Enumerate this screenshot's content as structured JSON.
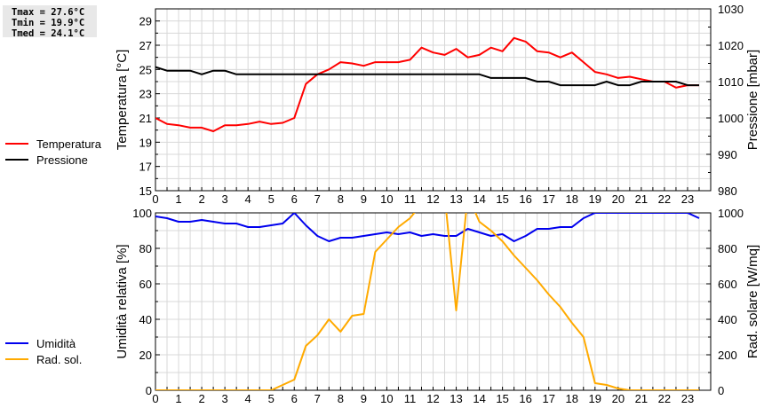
{
  "stats": {
    "tmax": "Tmax = 27.6°C",
    "tmin": "Tmin = 19.9°C",
    "tmed": "Tmed = 24.1°C"
  },
  "legend_top": [
    {
      "label": "Temperatura",
      "color": "#ff0000"
    },
    {
      "label": "Pressione",
      "color": "#000000"
    }
  ],
  "legend_bottom": [
    {
      "label": "Umidità",
      "color": "#0000ee"
    },
    {
      "label": "Rad. sol.",
      "color": "#ffaa00"
    }
  ],
  "chart_data": [
    {
      "type": "line",
      "title": "",
      "xlabel": "",
      "ylabel": "Temperatura [°C]",
      "ylabel_right": "Pressione [mbar]",
      "xlim": [
        0,
        24
      ],
      "ylim": [
        15,
        30
      ],
      "ylim_right": [
        980,
        1030
      ],
      "yticks": [
        15,
        17,
        19,
        21,
        23,
        25,
        27,
        29
      ],
      "yticks_right": [
        980,
        990,
        1000,
        1010,
        1020,
        1030
      ],
      "xticks": [
        0,
        1,
        2,
        3,
        4,
        5,
        6,
        7,
        8,
        9,
        10,
        11,
        12,
        13,
        14,
        15,
        16,
        17,
        18,
        19,
        20,
        21,
        22,
        23
      ],
      "grid": true,
      "legend_position": "left",
      "x": [
        0,
        0.5,
        1,
        1.5,
        2,
        2.5,
        3,
        3.5,
        4,
        4.5,
        5,
        5.5,
        6,
        6.5,
        7,
        7.5,
        8,
        8.5,
        9,
        9.5,
        10,
        10.5,
        11,
        11.5,
        12,
        12.5,
        13,
        13.5,
        14,
        14.5,
        15,
        15.5,
        16,
        16.5,
        17,
        17.5,
        18,
        18.5,
        19,
        19.5,
        20,
        20.5,
        21,
        21.5,
        22,
        22.5,
        23,
        23.5
      ],
      "series": [
        {
          "name": "Temperatura",
          "axis": "left",
          "color": "#ff0000",
          "values": [
            21.0,
            20.5,
            20.4,
            20.2,
            20.2,
            19.9,
            20.4,
            20.4,
            20.5,
            20.7,
            20.5,
            20.6,
            21.0,
            23.8,
            24.6,
            25.0,
            25.6,
            25.5,
            25.3,
            25.6,
            25.6,
            25.6,
            25.8,
            26.8,
            26.4,
            26.2,
            26.7,
            26.0,
            26.2,
            26.8,
            26.5,
            27.6,
            27.3,
            26.5,
            26.4,
            26.0,
            26.4,
            25.6,
            24.8,
            24.6,
            24.3,
            24.4,
            24.2,
            24.0,
            24.0,
            23.5,
            23.7,
            23.7
          ]
        },
        {
          "name": "Pressione",
          "axis": "right",
          "color": "#000000",
          "values": [
            1014,
            1013,
            1013,
            1013,
            1012,
            1013,
            1013,
            1012,
            1012,
            1012,
            1012,
            1012,
            1012,
            1012,
            1012,
            1012,
            1012,
            1012,
            1012,
            1012,
            1012,
            1012,
            1012,
            1012,
            1012,
            1012,
            1012,
            1012,
            1012,
            1011,
            1011,
            1011,
            1011,
            1010,
            1010,
            1009,
            1009,
            1009,
            1009,
            1010,
            1009,
            1009,
            1010,
            1010,
            1010,
            1010,
            1009,
            1009
          ]
        }
      ]
    },
    {
      "type": "line",
      "title": "",
      "xlabel": "",
      "ylabel": "Umidità relativa [%]",
      "ylabel_right": "Rad. solare [W/mq]",
      "xlim": [
        0,
        24
      ],
      "ylim": [
        0,
        100
      ],
      "ylim_right": [
        0,
        1000
      ],
      "yticks": [
        0,
        20,
        40,
        60,
        80,
        100
      ],
      "yticks_right": [
        0,
        200,
        400,
        600,
        800,
        1000
      ],
      "xticks": [
        0,
        1,
        2,
        3,
        4,
        5,
        6,
        7,
        8,
        9,
        10,
        11,
        12,
        13,
        14,
        15,
        16,
        17,
        18,
        19,
        20,
        21,
        22,
        23
      ],
      "grid": true,
      "legend_position": "left",
      "x": [
        0,
        0.5,
        1,
        1.5,
        2,
        2.5,
        3,
        3.5,
        4,
        4.5,
        5,
        5.5,
        6,
        6.5,
        7,
        7.5,
        8,
        8.5,
        9,
        9.5,
        10,
        10.5,
        11,
        11.5,
        12,
        12.5,
        13,
        13.5,
        14,
        14.5,
        15,
        15.5,
        16,
        16.5,
        17,
        17.5,
        18,
        18.5,
        19,
        19.5,
        20,
        20.5,
        21,
        21.5,
        22,
        22.5,
        23,
        23.5
      ],
      "series": [
        {
          "name": "Umidità",
          "axis": "left",
          "color": "#0000ee",
          "values": [
            98,
            97,
            95,
            95,
            96,
            95,
            94,
            94,
            92,
            92,
            93,
            94,
            100,
            93,
            87,
            84,
            86,
            86,
            87,
            88,
            89,
            88,
            89,
            87,
            88,
            87,
            87,
            91,
            89,
            87,
            88,
            84,
            87,
            91,
            91,
            92,
            92,
            97,
            100,
            100,
            100,
            100,
            100,
            100,
            100,
            100,
            100,
            97
          ]
        },
        {
          "name": "Rad. sol.",
          "axis": "right",
          "color": "#ffaa00",
          "values": [
            0,
            0,
            0,
            0,
            0,
            0,
            0,
            0,
            0,
            0,
            0,
            30,
            60,
            250,
            310,
            400,
            330,
            420,
            430,
            780,
            850,
            920,
            970,
            1050,
            1100,
            1100,
            450,
            1100,
            950,
            900,
            840,
            760,
            690,
            620,
            540,
            470,
            380,
            300,
            40,
            30,
            10,
            0,
            0,
            0,
            0,
            0,
            0,
            0
          ]
        }
      ]
    }
  ]
}
